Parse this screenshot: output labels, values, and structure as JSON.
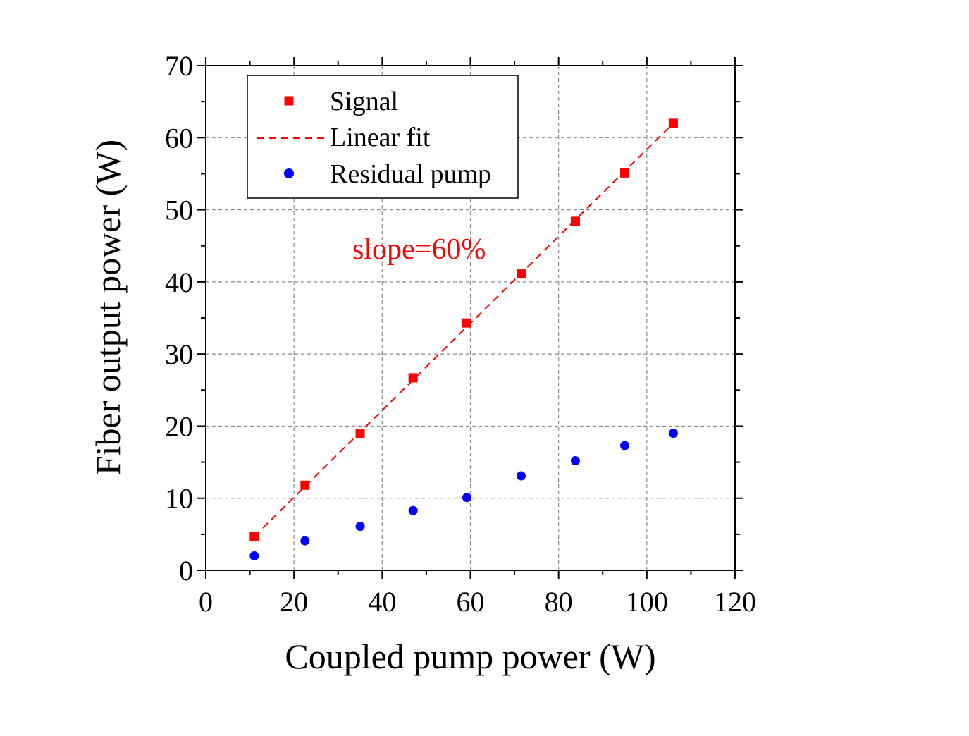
{
  "chart_data": {
    "type": "scatter",
    "title": "",
    "xlabel": "Coupled pump power (W)",
    "ylabel": "Fiber output power (W)",
    "xlim": [
      0,
      120
    ],
    "ylim": [
      0,
      70
    ],
    "xticks": [
      0,
      20,
      40,
      60,
      80,
      100,
      120
    ],
    "yticks": [
      0,
      10,
      20,
      30,
      40,
      50,
      60,
      70
    ],
    "xtick_labels": [
      "0",
      "20",
      "40",
      "60",
      "80",
      "100",
      "120"
    ],
    "ytick_labels": [
      "0",
      "10",
      "20",
      "30",
      "40",
      "50",
      "60",
      "70"
    ],
    "grid": true,
    "legend_position": "top-left",
    "annotation": "slope=60%",
    "series": [
      {
        "name": "Signal",
        "kind": "scatter",
        "marker": "square",
        "color": "#ff0000",
        "x": [
          11,
          22.5,
          35,
          47,
          59.2,
          71.5,
          83.8,
          95,
          106
        ],
        "y": [
          4.7,
          11.8,
          19.0,
          26.7,
          34.3,
          41.1,
          48.4,
          55.1,
          62.0
        ]
      },
      {
        "name": "Linear fit",
        "kind": "line",
        "style": "dashed",
        "color": "#ff0000",
        "x": [
          11,
          106
        ],
        "y": [
          4.7,
          62.0
        ]
      },
      {
        "name": "Residual pump",
        "kind": "scatter",
        "marker": "circle",
        "color": "#0000ff",
        "x": [
          11,
          22.5,
          35,
          47,
          59.2,
          71.5,
          83.8,
          95,
          106
        ],
        "y": [
          2.0,
          4.1,
          6.1,
          8.3,
          10.1,
          13.1,
          15.2,
          17.3,
          19.0
        ]
      }
    ]
  }
}
